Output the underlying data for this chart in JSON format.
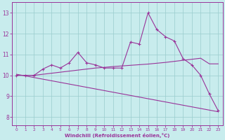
{
  "bg_color": "#c8eced",
  "line_color": "#993399",
  "grid_color": "#99cccc",
  "xlabel": "Windchill (Refroidissement éolien,°C)",
  "ylabel_ticks": [
    8,
    9,
    10,
    11,
    12,
    13
  ],
  "xlabel_ticks": [
    0,
    1,
    2,
    3,
    4,
    5,
    6,
    7,
    8,
    9,
    10,
    11,
    12,
    13,
    14,
    15,
    16,
    17,
    18,
    19,
    20,
    21,
    22,
    23
  ],
  "xlim": [
    -0.5,
    23.5
  ],
  "ylim": [
    7.6,
    13.5
  ],
  "line1_x": [
    0,
    1,
    2,
    3,
    4,
    5,
    6,
    7,
    8,
    9,
    10,
    11,
    12,
    13,
    14,
    15,
    16,
    17,
    18,
    19,
    20,
    21,
    22,
    23
  ],
  "line1_y": [
    10.0,
    10.0,
    10.0,
    10.3,
    10.5,
    10.35,
    10.6,
    11.1,
    10.6,
    10.5,
    10.35,
    10.35,
    10.35,
    11.6,
    11.5,
    13.0,
    12.2,
    11.85,
    11.65,
    10.8,
    10.5,
    10.0,
    9.1,
    8.3
  ],
  "line2_x": [
    0,
    1,
    2,
    3,
    4,
    5,
    6,
    7,
    8,
    9,
    10,
    11,
    12,
    13,
    14,
    15,
    16,
    17,
    18,
    19,
    20,
    21,
    22,
    23
  ],
  "line2_y": [
    10.0,
    10.0,
    10.0,
    10.05,
    10.1,
    10.15,
    10.2,
    10.25,
    10.3,
    10.35,
    10.38,
    10.42,
    10.45,
    10.48,
    10.51,
    10.54,
    10.58,
    10.62,
    10.67,
    10.72,
    10.77,
    10.82,
    10.55,
    10.55
  ],
  "line3_x": [
    0,
    23
  ],
  "line3_y": [
    10.05,
    8.25
  ],
  "figsize": [
    3.2,
    2.0
  ],
  "dpi": 100
}
